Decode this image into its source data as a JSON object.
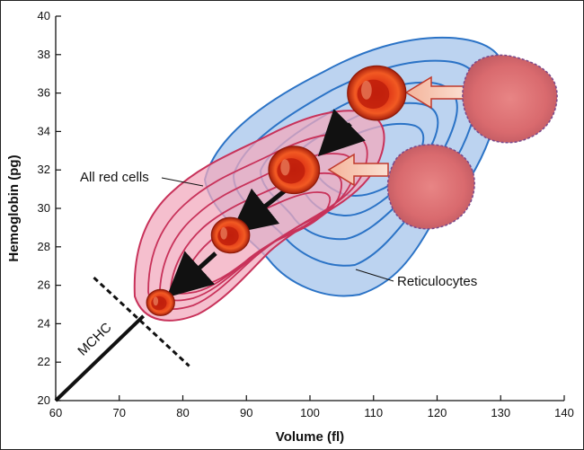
{
  "chart_data": {
    "type": "contour",
    "xlabel": "Volume (fl)",
    "ylabel": "Hemoglobin (pg)",
    "xlim": [
      60,
      140
    ],
    "ylim": [
      20,
      40
    ],
    "xticks": [
      60,
      70,
      80,
      90,
      100,
      110,
      120,
      130,
      140
    ],
    "yticks": [
      20,
      22,
      24,
      26,
      28,
      30,
      32,
      34,
      36,
      38,
      40
    ],
    "grid": false,
    "annotations": {
      "all_red_cells": "All red cells",
      "reticulocytes": "Reticulocytes",
      "mchc": "MCHC"
    },
    "series": [
      {
        "name": "All red cells",
        "color": "#c8325a",
        "fill": "#f2aabe"
      },
      {
        "name": "Reticulocytes",
        "color": "#2b73c6",
        "fill": "#b6d0ef"
      }
    ],
    "cells": [
      {
        "x": 76.5,
        "y": 25.1,
        "r": 2.2
      },
      {
        "x": 87.5,
        "y": 28.6,
        "r": 3.0
      },
      {
        "x": 97.5,
        "y": 32.0,
        "r": 4.0
      },
      {
        "x": 110.5,
        "y": 36.0,
        "r": 4.6
      }
    ],
    "reticulocyte_cells": [
      {
        "x": 127,
        "y": 31.0,
        "r": 6.5
      },
      {
        "x": 134,
        "y": 36.0,
        "r": 6.8
      }
    ],
    "mchc_line": {
      "from": [
        60,
        20
      ],
      "to": [
        73.8,
        24.4
      ]
    },
    "mchc_dashed": {
      "from": [
        66,
        26.4
      ],
      "to": [
        81,
        21.8
      ]
    }
  }
}
